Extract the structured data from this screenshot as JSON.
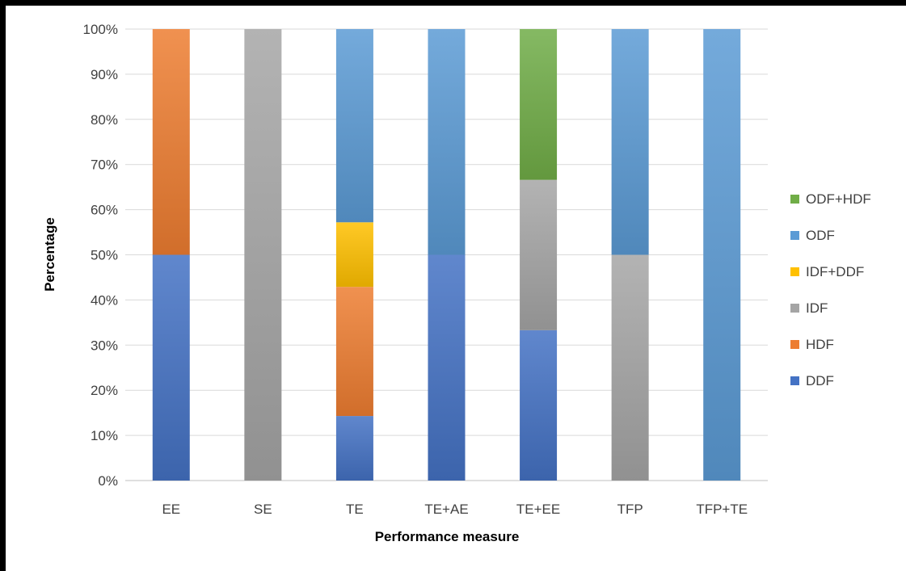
{
  "chart_data": {
    "type": "bar",
    "stacked": true,
    "percent_stacked": true,
    "xlabel": "Performance measure",
    "ylabel": "Percentage",
    "categories": [
      "EE",
      "SE",
      "TE",
      "TE+AE",
      "TE+EE",
      "TFP",
      "TFP+TE"
    ],
    "ylim": [
      0,
      100
    ],
    "yticks": [
      0,
      10,
      20,
      30,
      40,
      50,
      60,
      70,
      80,
      90,
      100
    ],
    "ytick_labels": [
      "0%",
      "10%",
      "20%",
      "30%",
      "40%",
      "50%",
      "60%",
      "70%",
      "80%",
      "90%",
      "100%"
    ],
    "grid": true,
    "legend_position": "right",
    "series": [
      {
        "name": "DDF",
        "color": "#4472C4",
        "values": [
          50,
          0,
          14.3,
          50,
          33.3,
          0,
          0
        ]
      },
      {
        "name": "HDF",
        "color": "#ED7D31",
        "values": [
          50,
          0,
          28.6,
          0,
          0,
          0,
          0
        ]
      },
      {
        "name": "IDF",
        "color": "#A5A5A5",
        "values": [
          0,
          100,
          0,
          0,
          33.3,
          50,
          0
        ]
      },
      {
        "name": "IDF+DDF",
        "color": "#FFC000",
        "values": [
          0,
          0,
          14.3,
          0,
          0,
          0,
          0
        ]
      },
      {
        "name": "ODF",
        "color": "#5B9BD5",
        "values": [
          0,
          0,
          42.8,
          50,
          0,
          50,
          100
        ]
      },
      {
        "name": "ODF+HDF",
        "color": "#70AD47",
        "values": [
          0,
          0,
          0,
          0,
          33.4,
          0,
          0
        ]
      }
    ]
  }
}
